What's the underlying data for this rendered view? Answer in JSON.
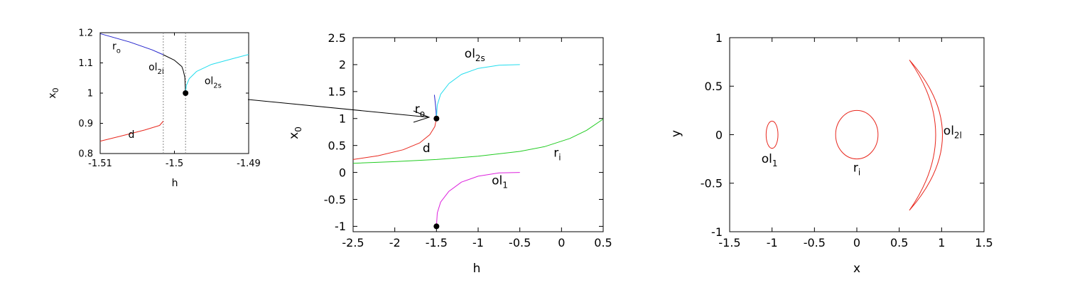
{
  "colors": {
    "red": "#e8281e",
    "green": "#22cc22",
    "cyan": "#22ddee",
    "blue": "#2222cc",
    "magenta": "#dd22dd",
    "black": "#000000",
    "vline": "#888888"
  },
  "chart_data": [
    {
      "id": "inset",
      "type": "line",
      "xlabel": "h",
      "ylabel": "x",
      "ylabel_sub": "0",
      "xlim": [
        -1.51,
        -1.49
      ],
      "ylim": [
        0.8,
        1.2
      ],
      "xticks": [
        -1.51,
        -1.5,
        -1.49
      ],
      "xtick_labels": [
        "-1.51",
        "-1.5",
        "-1.49"
      ],
      "yticks": [
        0.8,
        0.9,
        1.0,
        1.1,
        1.2
      ],
      "ytick_labels": [
        "0.8",
        "0.9",
        "1",
        "1.1",
        "1.2"
      ],
      "vertical_lines_x": [
        -1.5015,
        -1.4985
      ],
      "markers": [
        [
          -1.4985,
          1.0
        ]
      ],
      "series": [
        {
          "name": "ro",
          "color": "blue",
          "points": [
            [
              -1.51,
              1.197
            ],
            [
              -1.506,
              1.169
            ],
            [
              -1.503,
              1.143
            ],
            [
              -1.5015,
              1.127
            ]
          ]
        },
        {
          "name": "ol2l",
          "color": "black",
          "points": [
            [
              -1.5015,
              1.127
            ],
            [
              -1.5,
              1.109
            ],
            [
              -1.499,
              1.088
            ],
            [
              -1.4988,
              1.074
            ],
            [
              -1.4986,
              1.053
            ],
            [
              -1.4985,
              1.0
            ]
          ]
        },
        {
          "name": "ol2s",
          "color": "cyan",
          "points": [
            [
              -1.4985,
              1.0
            ],
            [
              -1.4984,
              1.025
            ],
            [
              -1.498,
              1.048
            ],
            [
              -1.497,
              1.072
            ],
            [
              -1.495,
              1.095
            ],
            [
              -1.492,
              1.115
            ],
            [
              -1.49,
              1.128
            ]
          ]
        },
        {
          "name": "d",
          "color": "red",
          "points": [
            [
              -1.51,
              0.841
            ],
            [
              -1.507,
              0.859
            ],
            [
              -1.504,
              0.878
            ],
            [
              -1.502,
              0.893
            ],
            [
              -1.5015,
              0.907
            ]
          ]
        }
      ],
      "labels": [
        {
          "text": "r",
          "sub": "o",
          "x": -1.5078,
          "y": 1.145
        },
        {
          "text": "ol",
          "sub": "2l",
          "x": -1.50245,
          "y": 1.075
        },
        {
          "text": "ol",
          "sub": "2s",
          "x": -1.4948,
          "y": 1.03
        },
        {
          "text": "d",
          "sub": "",
          "x": -1.5058,
          "y": 0.852
        }
      ]
    },
    {
      "id": "middle",
      "type": "line",
      "xlabel": "h",
      "ylabel": "x",
      "ylabel_sub": "0",
      "xlim": [
        -2.5,
        0.5
      ],
      "ylim": [
        -1.1,
        2.5
      ],
      "xticks": [
        -2.5,
        -2,
        -1.5,
        -1,
        -0.5,
        0,
        0.5
      ],
      "xtick_labels": [
        "-2.5",
        "-2",
        "-1.5",
        "-1",
        "-0.5",
        "0",
        "0.5"
      ],
      "yticks": [
        -1,
        -0.5,
        0,
        0.5,
        1,
        1.5,
        2,
        2.5
      ],
      "ytick_labels": [
        "-1",
        "-0.5",
        "0",
        "0.5",
        "1",
        "1.5",
        "2",
        "2.5"
      ],
      "markers": [
        [
          -1.5,
          1.0
        ],
        [
          -1.5,
          -1.0
        ]
      ],
      "series": [
        {
          "name": "d",
          "color": "red",
          "points": [
            [
              -2.5,
              0.24
            ],
            [
              -2.2,
              0.31
            ],
            [
              -1.9,
              0.42
            ],
            [
              -1.7,
              0.55
            ],
            [
              -1.58,
              0.7
            ],
            [
              -1.52,
              0.85
            ],
            [
              -1.5,
              1.0
            ]
          ]
        },
        {
          "name": "ri",
          "color": "green",
          "points": [
            [
              -2.5,
              0.17
            ],
            [
              -2.0,
              0.2
            ],
            [
              -1.5,
              0.24
            ],
            [
              -1.0,
              0.3
            ],
            [
              -0.5,
              0.39
            ],
            [
              -0.2,
              0.48
            ],
            [
              0.1,
              0.63
            ],
            [
              0.3,
              0.78
            ],
            [
              0.5,
              0.99
            ]
          ]
        },
        {
          "name": "ro",
          "color": "blue",
          "points": [
            [
              -1.5,
              1.0
            ],
            [
              -1.505,
              1.15
            ],
            [
              -1.515,
              1.3
            ],
            [
              -1.525,
              1.44
            ]
          ]
        },
        {
          "name": "ol2s",
          "color": "cyan",
          "points": [
            [
              -1.5,
              1.0
            ],
            [
              -1.49,
              1.25
            ],
            [
              -1.45,
              1.45
            ],
            [
              -1.35,
              1.65
            ],
            [
              -1.2,
              1.82
            ],
            [
              -1.0,
              1.93
            ],
            [
              -0.75,
              1.99
            ],
            [
              -0.5,
              2.0
            ]
          ]
        },
        {
          "name": "ol1",
          "color": "magenta",
          "points": [
            [
              -1.5,
              -1.0
            ],
            [
              -1.49,
              -0.75
            ],
            [
              -1.45,
              -0.55
            ],
            [
              -1.35,
              -0.35
            ],
            [
              -1.2,
              -0.18
            ],
            [
              -1.0,
              -0.07
            ],
            [
              -0.75,
              -0.01
            ],
            [
              -0.5,
              0.0
            ]
          ]
        }
      ],
      "labels": [
        {
          "text": "r",
          "sub": "o",
          "x": -1.7,
          "y": 1.1
        },
        {
          "text": "ol",
          "sub": "2s",
          "x": -1.04,
          "y": 2.13
        },
        {
          "text": "d",
          "sub": "",
          "x": -1.62,
          "y": 0.38
        },
        {
          "text": "r",
          "sub": "i",
          "x": -0.05,
          "y": 0.29
        },
        {
          "text": "ol",
          "sub": "1",
          "x": -0.74,
          "y": -0.22
        }
      ]
    },
    {
      "id": "right",
      "type": "line",
      "xlabel": "x",
      "ylabel": "y",
      "ylabel_sub": "",
      "xlim": [
        -1.5,
        1.5
      ],
      "ylim": [
        -1.0,
        1.0
      ],
      "xticks": [
        -1.5,
        -1,
        -0.5,
        0,
        0.5,
        1,
        1.5
      ],
      "xtick_labels": [
        "-1.5",
        "-1",
        "-0.5",
        "0",
        "0.5",
        "1",
        "1.5"
      ],
      "yticks": [
        -1,
        -0.5,
        0,
        0.5,
        1
      ],
      "ytick_labels": [
        "-1",
        "-0.5",
        "0",
        "0.5",
        "1"
      ],
      "series": [
        {
          "name": "ol1",
          "color": "red",
          "shape": "ellipse",
          "cx": -1.0,
          "cy": 0.0,
          "rx": 0.07,
          "ry": 0.14
        },
        {
          "name": "ri",
          "color": "red",
          "shape": "ellipse",
          "cx": 0.0,
          "cy": 0.0,
          "rx": 0.25,
          "ry": 0.25
        },
        {
          "name": "ol2l",
          "color": "red",
          "shape": "crescent",
          "tips": [
            [
              0.62,
              0.77
            ],
            [
              0.62,
              -0.78
            ]
          ],
          "outer_mid": [
            1.01,
            0.0
          ],
          "inner_mid": [
            0.93,
            0.0
          ]
        }
      ],
      "labels": [
        {
          "text": "ol",
          "sub": "1",
          "x": -1.03,
          "y": -0.29
        },
        {
          "text": "r",
          "sub": "i",
          "x": 0.0,
          "y": -0.38
        },
        {
          "text": "ol",
          "sub": "2l",
          "x": 1.13,
          "y": 0.0
        }
      ]
    }
  ]
}
